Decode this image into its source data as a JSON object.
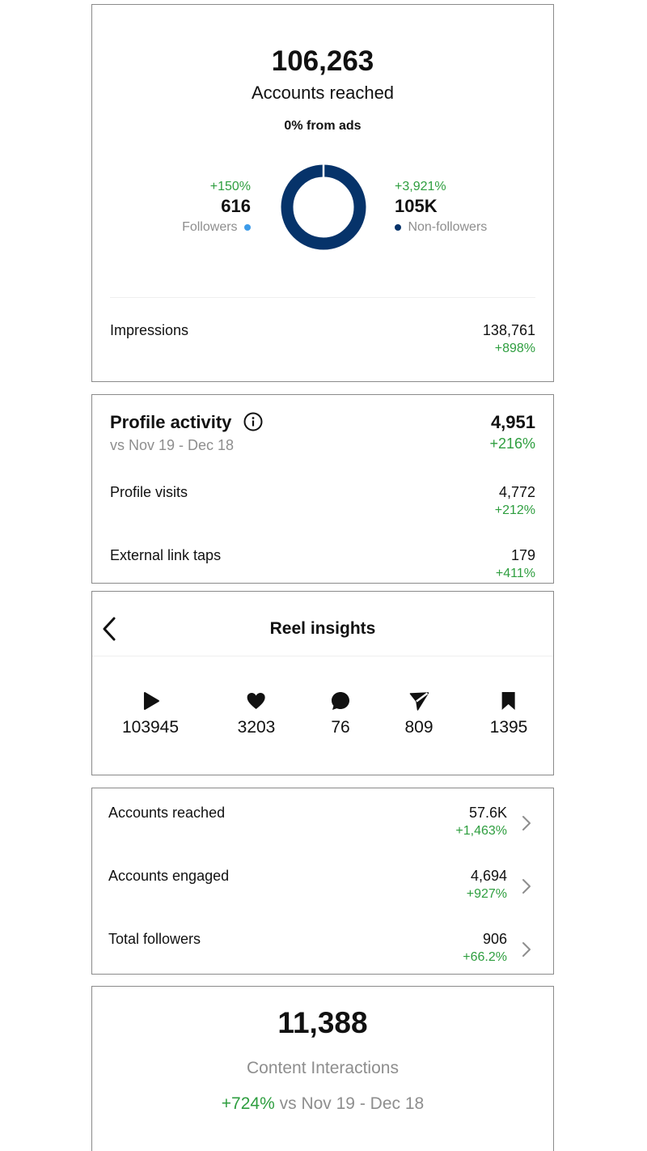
{
  "reach": {
    "value": "106,263",
    "label": "Accounts reached",
    "ads": "0% from ads",
    "followers": {
      "pct": "+150%",
      "value": "616",
      "label": "Followers",
      "color": "#3d9be9"
    },
    "nonfollowers": {
      "pct": "+3,921%",
      "value": "105K",
      "label": "Non-followers",
      "color": "#06336a"
    },
    "impressions": {
      "label": "Impressions",
      "value": "138,761",
      "pct": "+898%"
    }
  },
  "profile": {
    "title": "Profile activity",
    "range": "vs Nov 19 - Dec 18",
    "total": "4,951",
    "total_pct": "+216%",
    "rows": [
      {
        "label": "Profile visits",
        "value": "4,772",
        "pct": "+212%"
      },
      {
        "label": "External link taps",
        "value": "179",
        "pct": "+411%"
      }
    ]
  },
  "reel": {
    "title": "Reel insights",
    "stats": [
      {
        "icon": "play-icon",
        "value": "103945"
      },
      {
        "icon": "heart-icon",
        "value": "3203"
      },
      {
        "icon": "comment-icon",
        "value": "76"
      },
      {
        "icon": "share-icon",
        "value": "809"
      },
      {
        "icon": "bookmark-icon",
        "value": "1395"
      }
    ]
  },
  "metrics": [
    {
      "label": "Accounts reached",
      "value": "57.6K",
      "pct": "+1,463%"
    },
    {
      "label": "Accounts engaged",
      "value": "4,694",
      "pct": "+927%"
    },
    {
      "label": "Total followers",
      "value": "906",
      "pct": "+66.2%"
    }
  ],
  "interactions": {
    "value": "11,388",
    "label": "Content Interactions",
    "pct": "+724%",
    "range": " vs Nov 19 - Dec 18"
  },
  "colors": {
    "green": "#2e9e3f",
    "navy": "#06336a",
    "light_blue": "#3d9be9"
  }
}
